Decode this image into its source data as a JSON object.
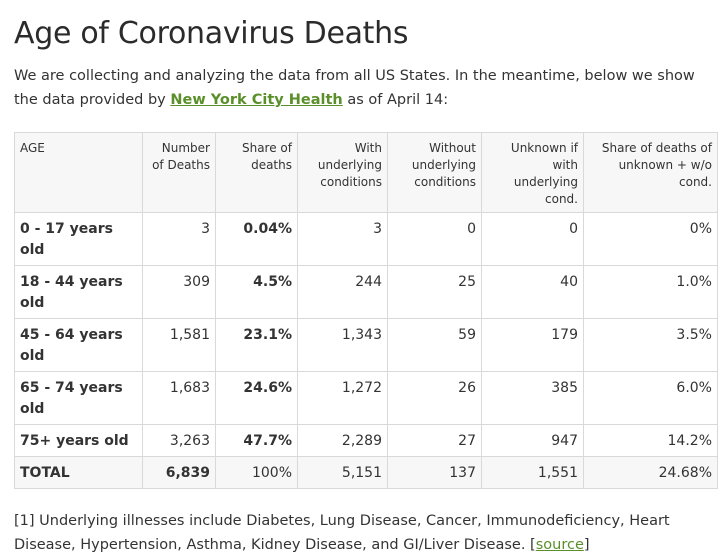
{
  "title": "Age of Coronavirus Deaths",
  "intro": {
    "before": "We are collecting and analyzing the data from all US States. In the meantime, below we show the data provided by ",
    "link_text": "New York City Health",
    "after": " as of April 14:"
  },
  "table": {
    "headers": [
      "AGE",
      "Number of Deaths",
      "Share of deaths",
      "With underlying conditions",
      "Without underlying conditions",
      "Unknown if with underlying cond.",
      "Share of deaths of unknown + w/o cond."
    ],
    "rows": [
      [
        "0 - 17 years old",
        "3",
        "0.04%",
        "3",
        "0",
        "0",
        "0%"
      ],
      [
        "18 - 44 years old",
        "309",
        "4.5%",
        "244",
        "25",
        "40",
        "1.0%"
      ],
      [
        "45 - 64 years old",
        "1,581",
        "23.1%",
        "1,343",
        "59",
        "179",
        "3.5%"
      ],
      [
        "65 - 74 years old",
        "1,683",
        "24.6%",
        "1,272",
        "26",
        "385",
        "6.0%"
      ],
      [
        "75+ years old",
        "3,263",
        "47.7%",
        "2,289",
        "27",
        "947",
        "14.2%"
      ]
    ],
    "total": [
      "TOTAL",
      "6,839",
      "100%",
      "5,151",
      "137",
      "1,551",
      "24.68%"
    ]
  },
  "footnote": {
    "text": "[1] Underlying illnesses include Diabetes, Lung Disease, Cancer, Immunodeficiency, Heart Disease, Hypertension, Asthma, Kidney Disease, and GI/Liver Disease. [",
    "link_text": "source",
    "after": "]"
  },
  "colors": {
    "link": "#5a8f2a",
    "header_bg": "#f7f7f7",
    "border": "#d9d9d9"
  }
}
